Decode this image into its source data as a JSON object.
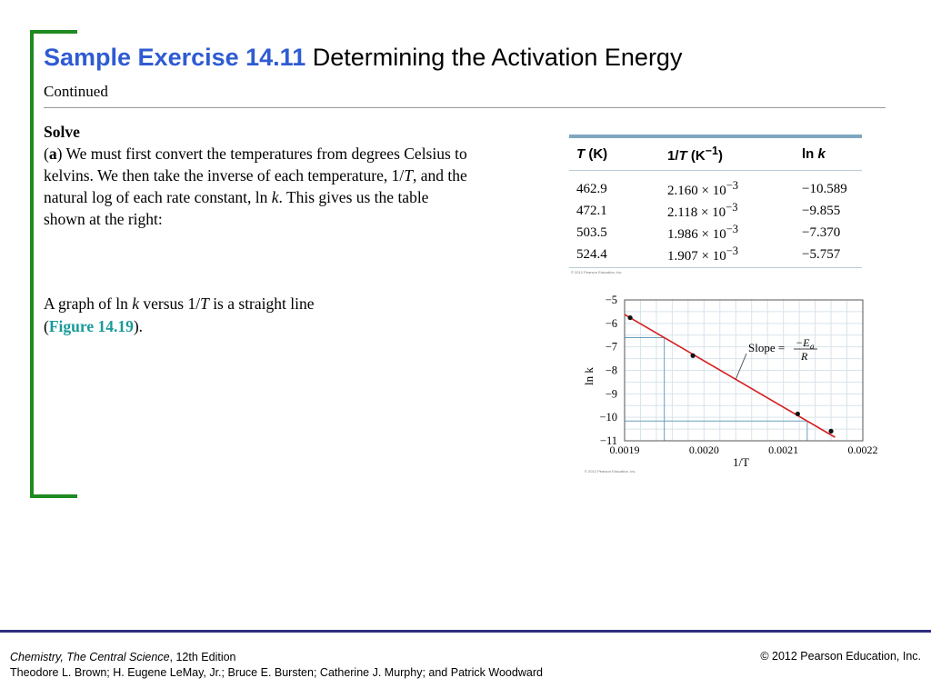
{
  "slide": {
    "title_highlight": "Sample Exercise 14.11",
    "title_rest": " Determining the Activation Energy",
    "subtitle": "Continued"
  },
  "solve": {
    "heading": "Solve",
    "part_open": "(",
    "part_letter": "a",
    "part_close": ")",
    "p1": " We must first convert the temperatures from degrees Celsius to kelvins. We then take the inverse of each temperature, 1/",
    "p1_var": "T",
    "p2": ", and the natural log of each rate constant, ln ",
    "p2_var": "k",
    "p3": ". This gives us the table shown at the right:"
  },
  "graph_text": {
    "a": "A graph of ln ",
    "k": "k",
    "b": " versus 1/",
    "t": "T",
    "c": " is a straight line",
    "open": "(",
    "figure_ref": "Figure 14.19",
    "close": ")."
  },
  "table": {
    "headers": [
      {
        "a": "T",
        "b": " (K)",
        "c": "",
        "d": ""
      },
      {
        "a": "1/",
        "b": "T",
        "c": " (K",
        "d": "−1",
        "e": ")"
      },
      {
        "a": "ln ",
        "b": "k"
      }
    ],
    "rows": [
      {
        "t": "462.9",
        "inv_mantissa": "2.160",
        "inv_exp": "−3",
        "lnk": "−10.589"
      },
      {
        "t": "472.1",
        "inv_mantissa": "2.118",
        "inv_exp": "−3",
        "lnk": "−9.855"
      },
      {
        "t": "503.5",
        "inv_mantissa": "1.986",
        "inv_exp": "−3",
        "lnk": "−7.370"
      },
      {
        "t": "524.4",
        "inv_mantissa": "1.907",
        "inv_exp": "−3",
        "lnk": "−5.757"
      }
    ],
    "times": " × 10",
    "credit": "© 2012 Pearson Education, Inc."
  },
  "chart_data": {
    "type": "scatter",
    "xlabel": "1/T",
    "ylabel": "ln k",
    "xlim": [
      0.0019,
      0.0022
    ],
    "ylim": [
      -11,
      -5
    ],
    "x_ticks": [
      "0.0019",
      "0.0020",
      "0.0021",
      "0.0022"
    ],
    "y_ticks": [
      "−5",
      "−6",
      "−7",
      "−8",
      "−9",
      "−10",
      "−11"
    ],
    "points": [
      {
        "x": 0.001907,
        "y": -5.757
      },
      {
        "x": 0.001986,
        "y": -7.37
      },
      {
        "x": 0.002118,
        "y": -9.855
      },
      {
        "x": 0.00216,
        "y": -10.589
      }
    ],
    "fit_line": [
      {
        "x": 0.0019,
        "y": -5.62
      },
      {
        "x": 0.002165,
        "y": -10.85
      }
    ],
    "grid": true,
    "annotation": {
      "text": "Slope =",
      "numerator": "−E",
      "sub": "a",
      "denominator": "R"
    },
    "colors": {
      "line": "#d42020",
      "grid": "#d6e4ec",
      "guide": "#6a9fbf",
      "frame": "#555555"
    },
    "credit": "© 2012 Pearson Education, Inc."
  },
  "footer": {
    "book": "Chemistry, The Central Science",
    "edition": ", 12th Edition",
    "authors": "Theodore L. Brown; H. Eugene LeMay, Jr.; Bruce E. Bursten; Catherine J. Murphy; and Patrick Woodward",
    "copyright": "© 2012 Pearson Education, Inc."
  }
}
